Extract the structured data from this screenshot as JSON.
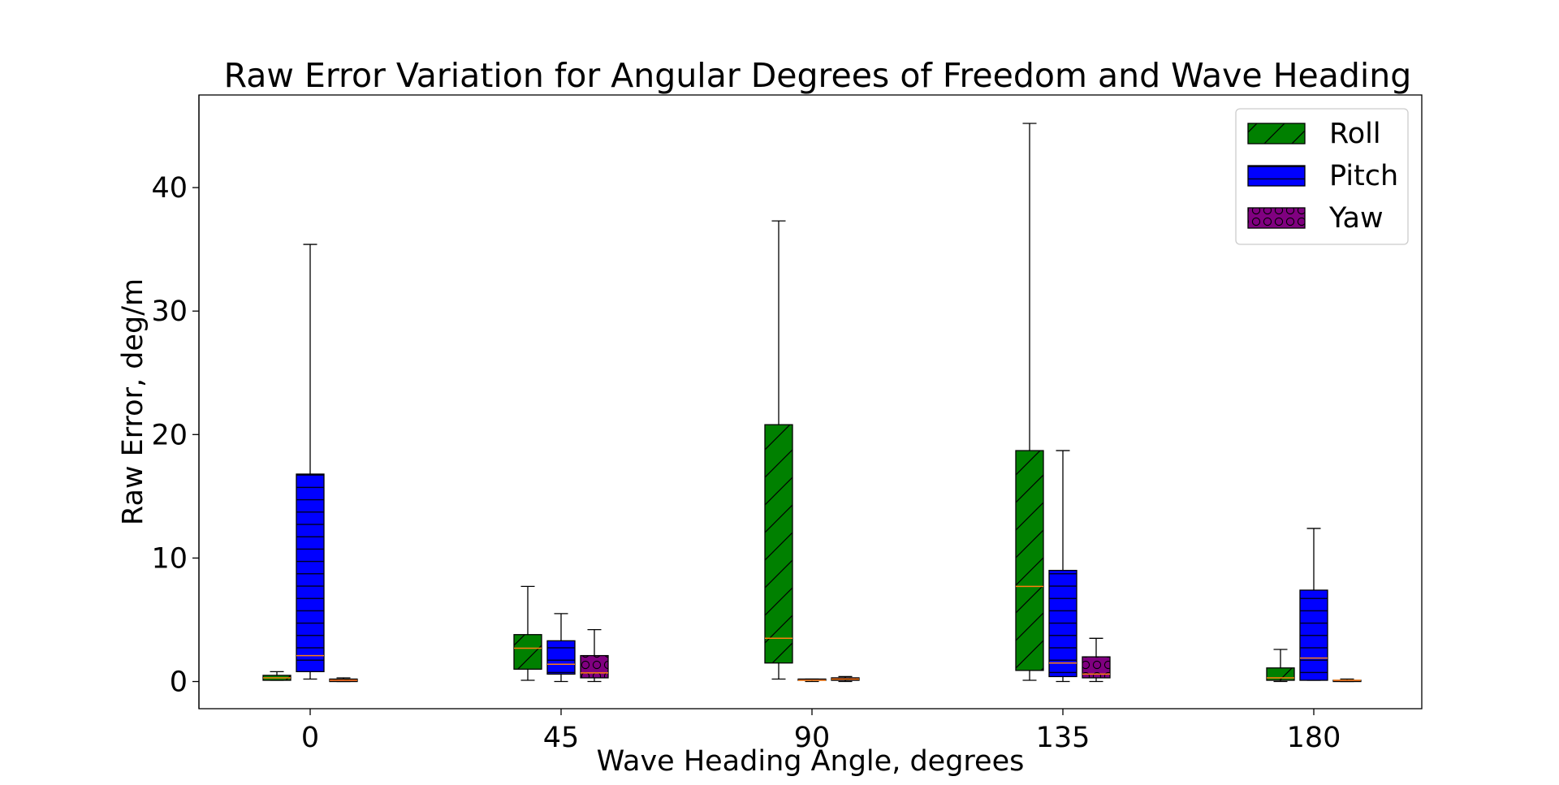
{
  "chart_data": {
    "type": "box",
    "title": "Raw Error Variation for Angular Degrees of Freedom and Wave Heading",
    "xlabel": "Wave Heading Angle, degrees",
    "ylabel": "Raw Error, deg/m",
    "categories": [
      "0",
      "45",
      "90",
      "135",
      "180"
    ],
    "ylim": [
      -2.2,
      47.5
    ],
    "yticks": [
      0,
      10,
      20,
      30,
      40
    ],
    "grid": false,
    "legend_position": "top-right",
    "series": [
      {
        "name": "Roll",
        "color": "#008000",
        "hatch": "diagonal",
        "boxes": [
          {
            "whislo": 0.1,
            "q1": 0.1,
            "med": 0.3,
            "q3": 0.5,
            "whishi": 0.8
          },
          {
            "whislo": 0.1,
            "q1": 1.0,
            "med": 2.7,
            "q3": 3.8,
            "whishi": 7.7
          },
          {
            "whislo": 0.2,
            "q1": 1.5,
            "med": 3.5,
            "q3": 20.8,
            "whishi": 37.3
          },
          {
            "whislo": 0.1,
            "q1": 0.9,
            "med": 7.7,
            "q3": 18.7,
            "whishi": 45.2
          },
          {
            "whislo": 0.0,
            "q1": 0.1,
            "med": 0.3,
            "q3": 1.1,
            "whishi": 2.6
          }
        ]
      },
      {
        "name": "Pitch",
        "color": "#0000ff",
        "hatch": "horizontal",
        "boxes": [
          {
            "whislo": 0.2,
            "q1": 0.8,
            "med": 2.1,
            "q3": 16.8,
            "whishi": 35.4
          },
          {
            "whislo": 0.0,
            "q1": 0.6,
            "med": 1.4,
            "q3": 3.3,
            "whishi": 5.5
          },
          {
            "whislo": 0.0,
            "q1": 0.1,
            "med": 0.1,
            "q3": 0.2,
            "whishi": 0.2
          },
          {
            "whislo": 0.0,
            "q1": 0.4,
            "med": 1.5,
            "q3": 9.0,
            "whishi": 18.7
          },
          {
            "whislo": 0.1,
            "q1": 0.1,
            "med": 1.9,
            "q3": 7.4,
            "whishi": 12.4
          }
        ]
      },
      {
        "name": "Yaw",
        "color": "#800080",
        "hatch": "circles",
        "boxes": [
          {
            "whislo": 0.0,
            "q1": 0.0,
            "med": 0.1,
            "q3": 0.2,
            "whishi": 0.3
          },
          {
            "whislo": 0.0,
            "q1": 0.3,
            "med": 0.7,
            "q3": 2.1,
            "whishi": 4.2
          },
          {
            "whislo": 0.0,
            "q1": 0.1,
            "med": 0.2,
            "q3": 0.3,
            "whishi": 0.4
          },
          {
            "whislo": 0.0,
            "q1": 0.3,
            "med": 0.6,
            "q3": 2.0,
            "whishi": 3.5
          },
          {
            "whislo": 0.0,
            "q1": 0.0,
            "med": 0.1,
            "q3": 0.1,
            "whishi": 0.2
          }
        ]
      }
    ],
    "median_color": "#ff7f0e"
  }
}
